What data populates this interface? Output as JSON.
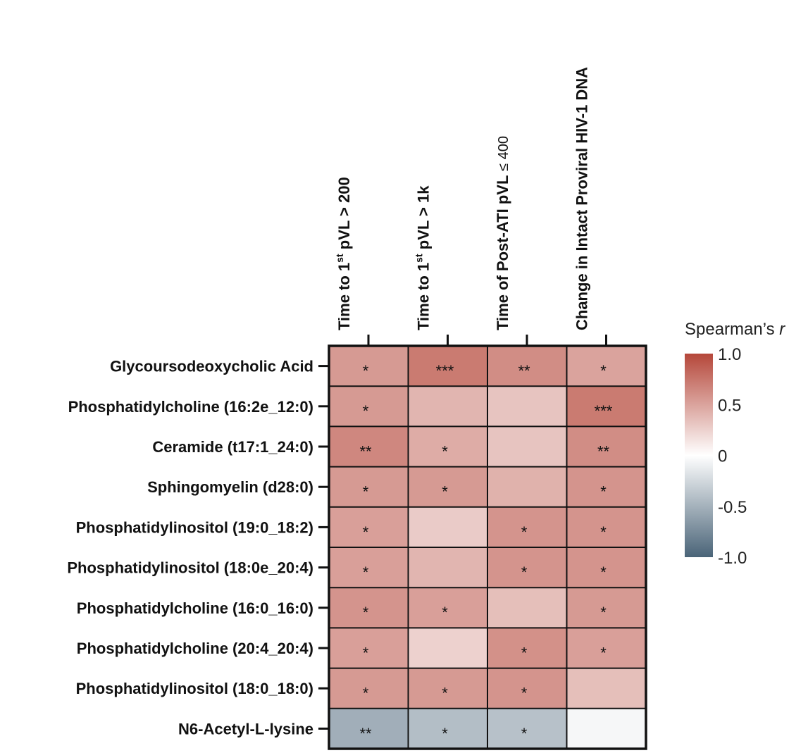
{
  "chart_data": {
    "type": "heatmap",
    "title": "",
    "columns": [
      {
        "prefix": "Time to 1",
        "sup": "st",
        "suffix": " pVL > 200"
      },
      {
        "prefix": "Time to 1",
        "sup": "st",
        "suffix": " pVL > 1k"
      },
      {
        "prefix": "Time of Post-ATI pVL ",
        "sup": "",
        "suffix": "≤ 400"
      },
      {
        "prefix": "Change in Intact Proviral HIV-1 DNA",
        "sup": "",
        "suffix": ""
      }
    ],
    "rows": [
      "Glycoursodeoxycholic Acid",
      "Phosphatidylcholine (16:2e_12:0)",
      "Ceramide (t17:1_24:0)",
      "Sphingomyelin (d28:0)",
      "Phosphatidylinositol (19:0_18:2)",
      "Phosphatidylinositol (18:0e_20:4)",
      "Phosphatidylcholine (16:0_16:0)",
      "Phosphatidylcholine (20:4_20:4)",
      "Phosphatidylinositol (18:0_18:0)",
      "N6-Acetyl-L-lysine"
    ],
    "values": [
      [
        0.55,
        0.72,
        0.62,
        0.5
      ],
      [
        0.55,
        0.4,
        0.32,
        0.72
      ],
      [
        0.65,
        0.45,
        0.32,
        0.62
      ],
      [
        0.55,
        0.55,
        0.42,
        0.58
      ],
      [
        0.52,
        0.28,
        0.58,
        0.58
      ],
      [
        0.52,
        0.4,
        0.58,
        0.58
      ],
      [
        0.58,
        0.52,
        0.35,
        0.55
      ],
      [
        0.52,
        0.25,
        0.6,
        0.52
      ],
      [
        0.55,
        0.55,
        0.58,
        0.35
      ],
      [
        -0.52,
        -0.42,
        -0.4,
        -0.05
      ]
    ],
    "significance": [
      [
        "*",
        "***",
        "**",
        "*"
      ],
      [
        "*",
        "",
        "",
        "***"
      ],
      [
        "**",
        "*",
        "",
        "**"
      ],
      [
        "*",
        "*",
        "",
        "*"
      ],
      [
        "*",
        "",
        "*",
        "*"
      ],
      [
        "*",
        "",
        "*",
        "*"
      ],
      [
        "*",
        "*",
        "",
        "*"
      ],
      [
        "*",
        "",
        "*",
        "*"
      ],
      [
        "*",
        "*",
        "*",
        ""
      ],
      [
        "**",
        "*",
        "*",
        ""
      ]
    ],
    "colorbar": {
      "label": "Spearman’s ",
      "label_italic": "r",
      "range": [
        -1.0,
        1.0
      ],
      "ticks": [
        {
          "value": 1.0,
          "label": "1.0"
        },
        {
          "value": 0.5,
          "label": "0.5"
        },
        {
          "value": 0.0,
          "label": "0"
        },
        {
          "value": -0.5,
          "label": "-0.5"
        },
        {
          "value": -1.0,
          "label": "-1.0"
        }
      ]
    },
    "colors": {
      "positive": "#b5473a",
      "neutral": "#ffffff",
      "negative": "#4a6478"
    }
  }
}
